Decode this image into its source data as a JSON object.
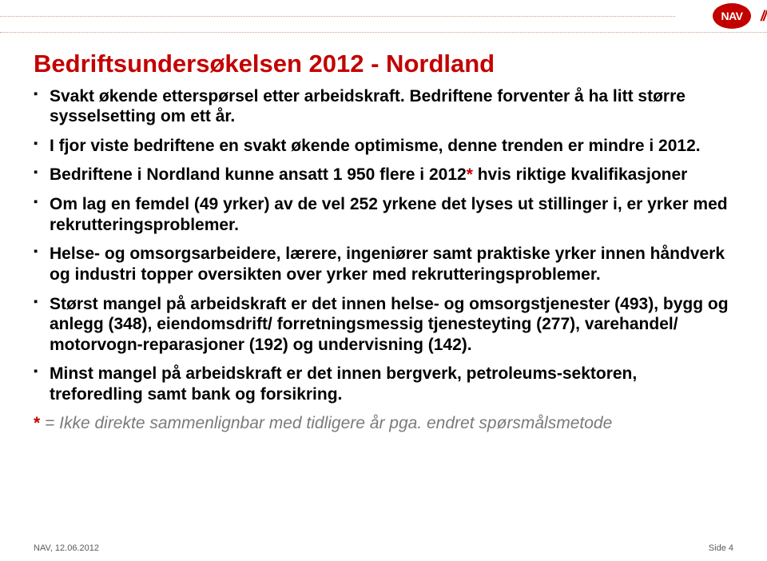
{
  "colors": {
    "accent_red": "#c30000",
    "dotted_line": "#c8a08a",
    "logo_bg": "#c30000",
    "footnote_text": "#7a7a7a",
    "footer_text": "#5a5a5a",
    "title_text": "#c30000"
  },
  "logo": {
    "text": "NAV",
    "slashes": "//"
  },
  "title": "Bedriftsundersøkelsen 2012 - Nordland",
  "bullets": [
    {
      "text": "Svakt økende etterspørsel etter arbeidskraft. Bedriftene forventer å ha litt større sysselsetting om ett år."
    },
    {
      "text": "I fjor viste bedriftene en svakt økende optimisme, denne trenden er mindre i 2012."
    },
    {
      "pre": "Bedriftene i Nordland kunne ansatt 1 950 flere i 2012",
      "star": "*",
      "post": " hvis riktige kvalifikasjoner"
    },
    {
      "text": "Om lag en femdel (49 yrker) av de vel 252 yrkene det lyses ut stillinger i, er yrker med rekrutteringsproblemer."
    },
    {
      "text": "Helse- og omsorgsarbeidere, lærere, ingeniører samt praktiske yrker innen håndverk og industri topper oversikten over yrker med rekrutteringsproblemer."
    },
    {
      "text": "Størst mangel på arbeidskraft er det innen helse- og omsorgstjenester (493), bygg og anlegg (348), eiendomsdrift/ forretningsmessig tjenesteyting (277), varehandel/ motorvogn-reparasjoner (192) og undervisning (142)."
    },
    {
      "text": "Minst mangel på arbeidskraft er det innen bergverk, petroleums-sektoren, treforedling samt bank og forsikring."
    }
  ],
  "footnote": {
    "star": "*",
    "text": " = Ikke direkte sammenlignbar med tidligere år pga. endret spørsmålsmetode"
  },
  "footer": {
    "left": "NAV, 12.06.2012",
    "right": "Side 4"
  }
}
